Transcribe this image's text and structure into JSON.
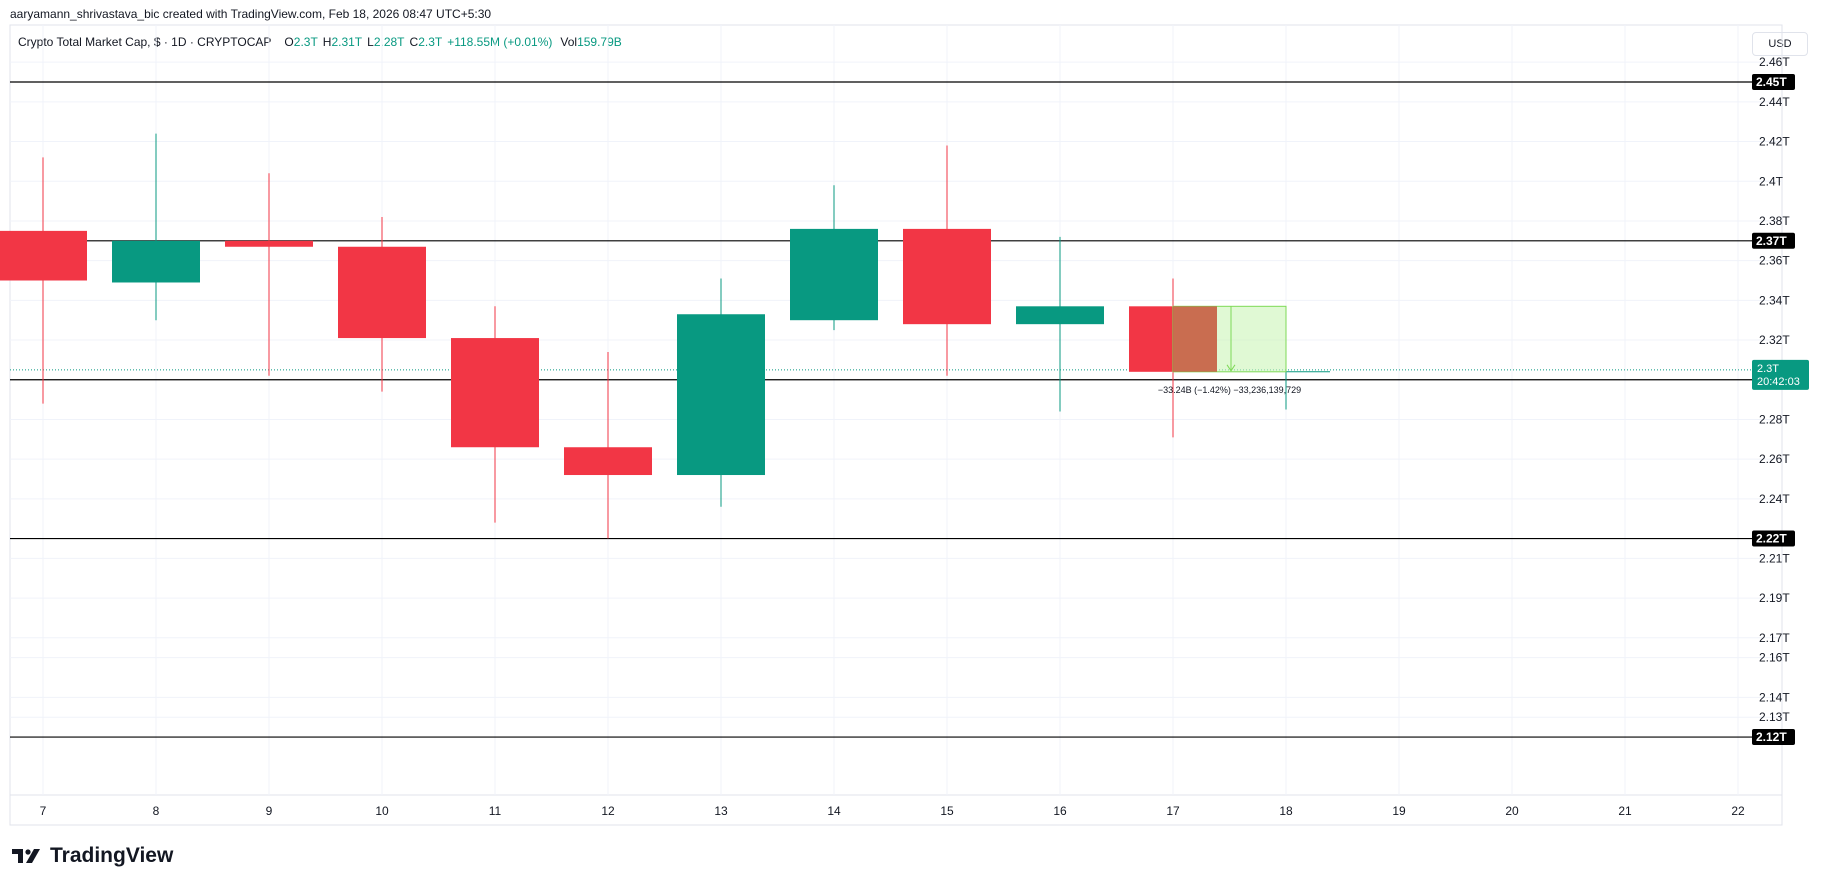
{
  "header": {
    "attribution": "aaryamann_shrivastava_bic created with TradingView.com, Feb 18, 2026 08:47 UTC+5:30"
  },
  "legend": {
    "symbol": "Crypto Total Market Cap, $ · 1D · CRYPTOCAP",
    "o_label": "O",
    "o_value": "2.3T",
    "h_label": "H",
    "h_value": "2.31T",
    "l_label": "L",
    "l_value": "2.28T",
    "c_label": "C",
    "c_value": "2.3T",
    "change": "+118.55M (+0.01%)",
    "vol_label": "Vol",
    "vol_value": "159.79B"
  },
  "currency_button": "USD",
  "brand": {
    "name": "TradingView",
    "icon": "tradingview-logo-icon"
  },
  "colors": {
    "up": "#089981",
    "down": "#f23645",
    "grid": "#f0f3fa",
    "hline": "#000000",
    "projection_fill": "#ccf5b8",
    "projection_stroke": "#7ed957",
    "current_price_line": "#089981"
  },
  "chart_data": {
    "type": "candlestick",
    "x_ticks": [
      "7",
      "8",
      "9",
      "10",
      "11",
      "12",
      "13",
      "14",
      "15",
      "16",
      "17",
      "18",
      "19",
      "20",
      "21",
      "22"
    ],
    "y_ticks": [
      "2.46T",
      "2.44T",
      "2.42T",
      "2.4T",
      "2.38T",
      "2.36T",
      "2.34T",
      "2.32T",
      "2.28T",
      "2.26T",
      "2.24T",
      "2.22T",
      "2.21T",
      "2.19T",
      "2.17T",
      "2.16T",
      "2.14T",
      "2.13T"
    ],
    "candles": [
      {
        "day": 7,
        "open": 2.375,
        "high": 2.412,
        "low": 2.288,
        "close": 2.35
      },
      {
        "day": 8,
        "open": 2.349,
        "high": 2.424,
        "low": 2.33,
        "close": 2.37
      },
      {
        "day": 9,
        "open": 2.37,
        "high": 2.404,
        "low": 2.302,
        "close": 2.367
      },
      {
        "day": 10,
        "open": 2.367,
        "high": 2.382,
        "low": 2.294,
        "close": 2.321
      },
      {
        "day": 11,
        "open": 2.321,
        "high": 2.337,
        "low": 2.228,
        "close": 2.266
      },
      {
        "day": 12,
        "open": 2.266,
        "high": 2.314,
        "low": 2.22,
        "close": 2.252
      },
      {
        "day": 13,
        "open": 2.252,
        "high": 2.351,
        "low": 2.236,
        "close": 2.333
      },
      {
        "day": 14,
        "open": 2.33,
        "high": 2.398,
        "low": 2.325,
        "close": 2.376
      },
      {
        "day": 15,
        "open": 2.376,
        "high": 2.418,
        "low": 2.302,
        "close": 2.328
      },
      {
        "day": 16,
        "open": 2.328,
        "high": 2.372,
        "low": 2.284,
        "close": 2.337
      },
      {
        "day": 17,
        "open": 2.337,
        "high": 2.351,
        "low": 2.271,
        "close": 2.304
      },
      {
        "day": 18,
        "open": 2.304,
        "high": 2.31,
        "low": 2.285,
        "close": 2.304
      }
    ],
    "horizontal_levels": [
      {
        "value": 2.45,
        "label": "2.45T"
      },
      {
        "value": 2.37,
        "label": "2.37T"
      },
      {
        "value": 2.3,
        "label": "2.3T"
      },
      {
        "value": 2.22,
        "label": "2.22T"
      },
      {
        "value": 2.12,
        "label": "2.12T"
      }
    ],
    "current_price": {
      "value": 2.305,
      "label": "2.3T",
      "countdown": "20:42:03"
    },
    "measure_annotation": {
      "from_day": 17,
      "to_day": 18,
      "top": 2.337,
      "bottom": 2.304,
      "text": "−33.24B (−1.42%) −33,236,139,729"
    },
    "grid": true
  }
}
